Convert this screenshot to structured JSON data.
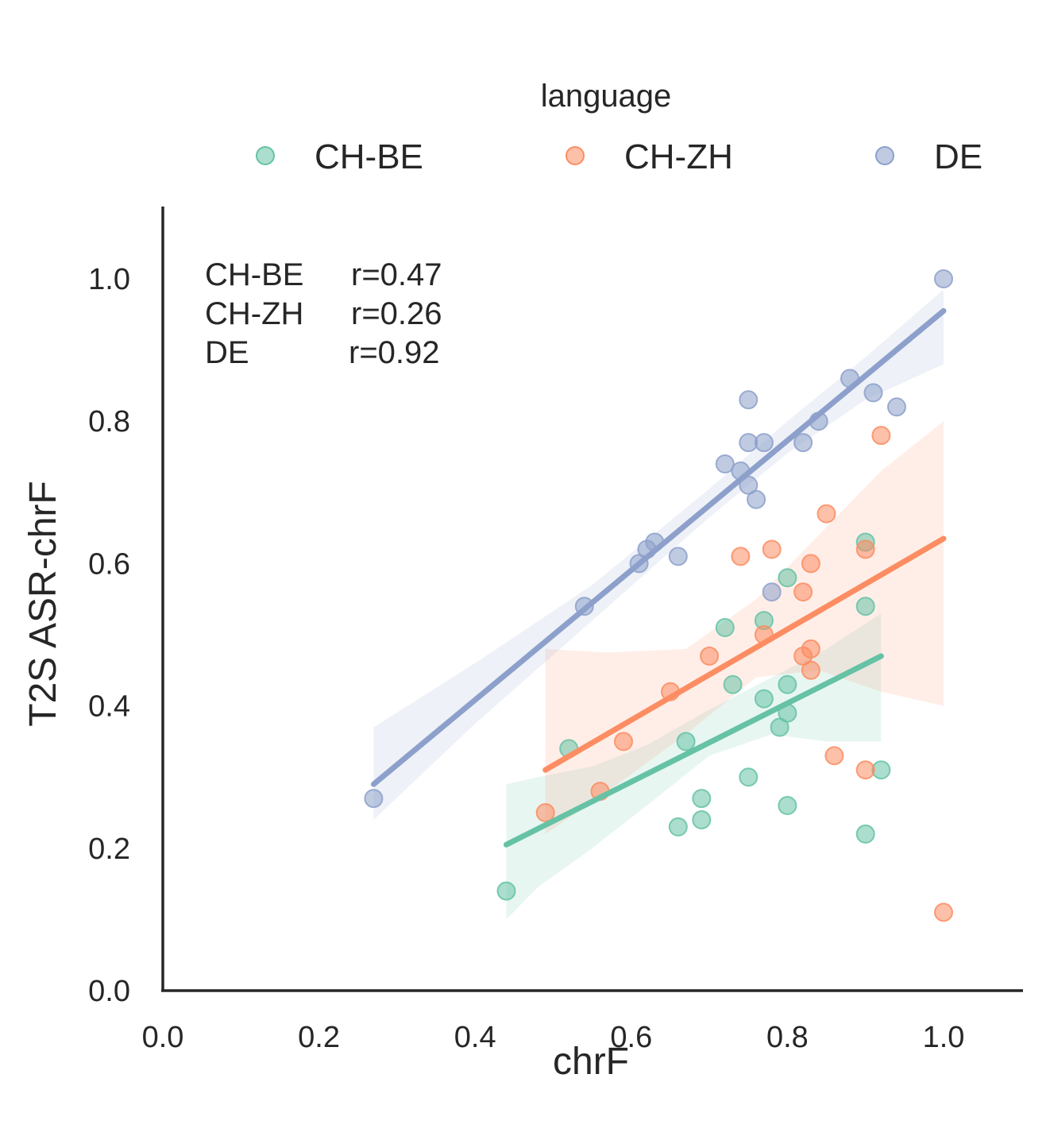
{
  "colors": {
    "ch_be": "#66c2a5",
    "ch_zh": "#fc8d62",
    "de": "#8da0cb",
    "axis": "#262626",
    "text": "#262626"
  },
  "chart_data": {
    "type": "scatter",
    "xlabel": "chrF",
    "ylabel": "T2S ASR-chrF",
    "xlim": [
      0.0,
      1.1
    ],
    "ylim": [
      0.0,
      1.1
    ],
    "xticks": [
      "0.0",
      "0.2",
      "0.4",
      "0.6",
      "0.8",
      "1.0"
    ],
    "yticks": [
      "0.0",
      "0.2",
      "0.4",
      "0.6",
      "0.8",
      "1.0"
    ],
    "grid": false,
    "legend": {
      "title": "language",
      "placement": "top-center"
    },
    "annotations": [
      {
        "label": "CH-BE",
        "value": "r=0.47"
      },
      {
        "label": "CH-ZH",
        "value": "r=0.26"
      },
      {
        "label": "DE",
        "value": "r=0.92"
      }
    ],
    "series": [
      {
        "name": "CH-BE",
        "color": "#66c2a5",
        "points": [
          [
            0.44,
            0.14
          ],
          [
            0.52,
            0.34
          ],
          [
            0.66,
            0.23
          ],
          [
            0.67,
            0.35
          ],
          [
            0.69,
            0.27
          ],
          [
            0.69,
            0.24
          ],
          [
            0.72,
            0.51
          ],
          [
            0.73,
            0.43
          ],
          [
            0.75,
            0.3
          ],
          [
            0.77,
            0.52
          ],
          [
            0.77,
            0.41
          ],
          [
            0.79,
            0.37
          ],
          [
            0.8,
            0.58
          ],
          [
            0.8,
            0.43
          ],
          [
            0.8,
            0.39
          ],
          [
            0.8,
            0.26
          ],
          [
            0.9,
            0.63
          ],
          [
            0.9,
            0.54
          ],
          [
            0.9,
            0.22
          ],
          [
            0.92,
            0.31
          ]
        ],
        "fit": {
          "x": [
            0.44,
            0.92
          ],
          "y": [
            0.205,
            0.47
          ]
        },
        "ci": {
          "x": [
            0.44,
            0.48,
            0.55,
            0.62,
            0.7,
            0.78,
            0.85,
            0.92
          ],
          "upper": [
            0.29,
            0.3,
            0.315,
            0.345,
            0.395,
            0.44,
            0.48,
            0.53
          ],
          "lower": [
            0.1,
            0.145,
            0.2,
            0.26,
            0.33,
            0.36,
            0.35,
            0.35
          ]
        }
      },
      {
        "name": "CH-ZH",
        "color": "#fc8d62",
        "points": [
          [
            0.49,
            0.25
          ],
          [
            0.56,
            0.28
          ],
          [
            0.59,
            0.35
          ],
          [
            0.65,
            0.42
          ],
          [
            0.7,
            0.47
          ],
          [
            0.74,
            0.61
          ],
          [
            0.77,
            0.5
          ],
          [
            0.78,
            0.62
          ],
          [
            0.82,
            0.56
          ],
          [
            0.82,
            0.47
          ],
          [
            0.83,
            0.48
          ],
          [
            0.83,
            0.6
          ],
          [
            0.83,
            0.45
          ],
          [
            0.85,
            0.67
          ],
          [
            0.86,
            0.33
          ],
          [
            0.9,
            0.62
          ],
          [
            0.9,
            0.31
          ],
          [
            0.92,
            0.78
          ],
          [
            1.0,
            0.11
          ]
        ],
        "fit": {
          "x": [
            0.49,
            1.0
          ],
          "y": [
            0.31,
            0.635
          ]
        },
        "ci": {
          "x": [
            0.49,
            0.57,
            0.67,
            0.76,
            0.84,
            0.92,
            1.0
          ],
          "upper": [
            0.48,
            0.475,
            0.48,
            0.55,
            0.64,
            0.73,
            0.8
          ],
          "lower": [
            0.22,
            0.28,
            0.36,
            0.44,
            0.45,
            0.42,
            0.4
          ]
        }
      },
      {
        "name": "DE",
        "color": "#8da0cb",
        "points": [
          [
            0.27,
            0.27
          ],
          [
            0.54,
            0.54
          ],
          [
            0.61,
            0.6
          ],
          [
            0.62,
            0.62
          ],
          [
            0.63,
            0.63
          ],
          [
            0.66,
            0.61
          ],
          [
            0.72,
            0.74
          ],
          [
            0.74,
            0.73
          ],
          [
            0.75,
            0.71
          ],
          [
            0.75,
            0.77
          ],
          [
            0.75,
            0.83
          ],
          [
            0.76,
            0.69
          ],
          [
            0.77,
            0.77
          ],
          [
            0.78,
            0.56
          ],
          [
            0.82,
            0.77
          ],
          [
            0.84,
            0.8
          ],
          [
            0.88,
            0.86
          ],
          [
            0.91,
            0.84
          ],
          [
            0.94,
            0.82
          ],
          [
            1.0,
            1.0
          ]
        ],
        "fit": {
          "x": [
            0.27,
            1.0
          ],
          "y": [
            0.29,
            0.955
          ]
        },
        "ci": {
          "x": [
            0.27,
            0.4,
            0.55,
            0.7,
            0.8,
            0.9,
            1.0
          ],
          "upper": [
            0.37,
            0.46,
            0.57,
            0.705,
            0.8,
            0.89,
            0.985
          ],
          "lower": [
            0.24,
            0.375,
            0.52,
            0.665,
            0.755,
            0.83,
            0.88
          ]
        }
      }
    ]
  }
}
